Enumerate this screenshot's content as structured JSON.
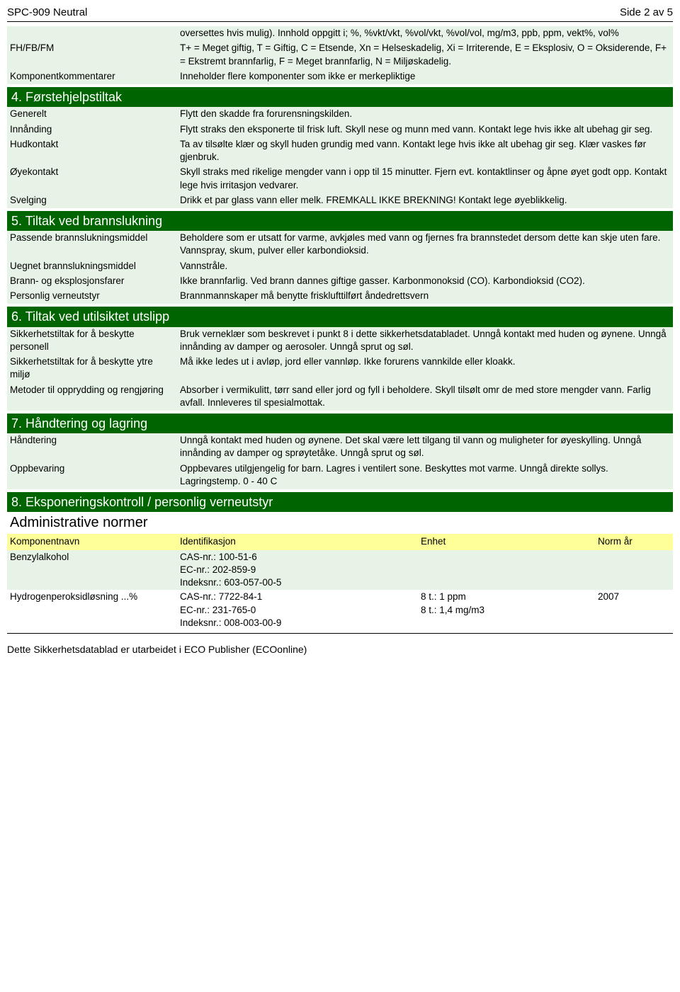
{
  "colors": {
    "section_bg": "#006400",
    "section_text": "#ffffff",
    "row_bg": "#e6f3e6",
    "header_row_bg": "#ffff99"
  },
  "header": {
    "title": "SPC-909 Neutral",
    "page": "Side 2 av 5"
  },
  "preamble": {
    "rows": [
      {
        "label": "",
        "value": "oversettes hvis mulig). Innhold oppgitt i; %, %vkt/vkt, %vol/vkt, %vol/vol, mg/m3, ppb, ppm, vekt%, vol%"
      },
      {
        "label": "FH/FB/FM",
        "value": "T+ = Meget giftig, T = Giftig, C = Etsende, Xn = Helseskadelig, Xi = Irriterende, E = Eksplosiv, O = Oksiderende, F+ = Ekstremt brannfarlig, F = Meget brannfarlig, N = Miljøskadelig."
      },
      {
        "label": "Komponentkommentarer",
        "value": "Inneholder flere komponenter som ikke er merkepliktige"
      }
    ]
  },
  "section4": {
    "title": "4. Førstehjelpstiltak",
    "rows": [
      {
        "label": "Generelt",
        "value": "Flytt den skadde fra forurensningskilden."
      },
      {
        "label": "Innånding",
        "value": "Flytt straks den eksponerte til frisk luft. Skyll nese og munn med vann. Kontakt lege hvis ikke alt ubehag gir seg."
      },
      {
        "label": "Hudkontakt",
        "value": "Ta av tilsølte klær og skyll huden grundig med vann. Kontakt lege hvis ikke alt ubehag gir seg. Klær vaskes før gjenbruk."
      },
      {
        "label": "Øyekontakt",
        "value": "Skyll straks med rikelige mengder vann i opp til 15 minutter. Fjern evt. kontaktlinser og åpne øyet godt opp. Kontakt lege hvis irritasjon vedvarer."
      },
      {
        "label": "Svelging",
        "value": "Drikk et par glass vann eller melk. FREMKALL IKKE BREKNING! Kontakt lege øyeblikkelig."
      }
    ]
  },
  "section5": {
    "title": "5. Tiltak ved brannslukning",
    "rows": [
      {
        "label": "Passende brannslukningsmiddel",
        "value": "Beholdere som er utsatt for varme, avkjøles med vann og fjernes fra brannstedet dersom dette kan skje uten fare. Vannspray, skum, pulver eller karbondioksid."
      },
      {
        "label": "Uegnet brannslukningsmiddel",
        "value": "Vannstråle."
      },
      {
        "label": "Brann- og eksplosjonsfarer",
        "value": "Ikke brannfarlig. Ved brann dannes giftige gasser. Karbonmonoksid (CO). Karbondioksid (CO2)."
      },
      {
        "label": "Personlig verneutstyr",
        "value": "Brannmannskaper må benytte frisklufttilført åndedrettsvern"
      }
    ]
  },
  "section6": {
    "title": "6. Tiltak ved utilsiktet utslipp",
    "rows": [
      {
        "label": "Sikkerhetstiltak for å beskytte personell",
        "value": "Bruk verneklær som beskrevet i punkt 8 i dette sikkerhetsdatabladet. Unngå kontakt med huden og øynene. Unngå innånding av damper og aerosoler. Unngå sprut og søl."
      },
      {
        "label": "Sikkerhetstiltak for å beskytte ytre miljø",
        "value": "Må ikke ledes ut i avløp, jord eller vannløp. Ikke forurens vannkilde eller kloakk."
      },
      {
        "label": "Metoder til opprydding og rengjøring",
        "value": "Absorber i vermikulitt, tørr sand eller jord og fyll i beholdere. Skyll tilsølt omr de med store mengder vann. Farlig avfall. Innleveres til spesialmottak."
      }
    ]
  },
  "section7": {
    "title": "7. Håndtering og lagring",
    "rows": [
      {
        "label": "Håndtering",
        "value": "Unngå kontakt med huden og øynene. Det skal være lett tilgang til vann og muligheter for øyeskylling. Unngå innånding av damper og sprøytetåke. Unngå sprut og søl."
      },
      {
        "label": "Oppbevaring",
        "value": "Oppbevares utilgjengelig for barn. Lagres i ventilert sone. Beskyttes mot varme. Unngå direkte sollys. Lagringstemp. 0 - 40 C"
      }
    ]
  },
  "section8": {
    "title": "8. Eksponeringskontroll / personlig verneutstyr",
    "subheading": "Administrative normer",
    "columns": [
      "Komponentnavn",
      "Identifikasjon",
      "Enhet",
      "Norm år"
    ],
    "table": [
      {
        "name": "Benzylalkohol",
        "ident": [
          "CAS-nr.: 100-51-6",
          "EC-nr.: 202-859-9",
          "Indeksnr.: 603-057-00-5"
        ],
        "enhet": [],
        "year": "",
        "bg": "#e6f3e6"
      },
      {
        "name": "Hydrogenperoksidløsning ...%",
        "ident": [
          "CAS-nr.: 7722-84-1",
          "EC-nr.: 231-765-0",
          "Indeksnr.: 008-003-00-9"
        ],
        "enhet": [
          "8 t.: 1 ppm",
          "8 t.: 1,4 mg/m3"
        ],
        "year": "2007",
        "bg": "#ffffff"
      }
    ]
  },
  "footer": "Dette Sikkerhetsdatablad er utarbeidet i ECO Publisher (ECOonline)"
}
